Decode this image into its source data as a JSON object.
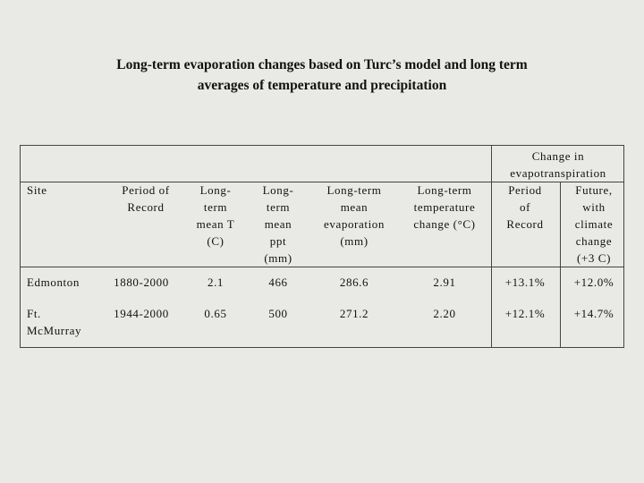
{
  "title": [
    "Long-term evaporation changes based on Turc’s model and long term",
    "averages of temperature and precipitation"
  ],
  "table": {
    "group_header": [
      "Change in",
      "evapotranspiration"
    ],
    "columns": [
      [
        "Site"
      ],
      [
        "Period of",
        "Record"
      ],
      [
        "Long-",
        "term",
        "mean T",
        "(C)"
      ],
      [
        "Long-",
        "term",
        "mean",
        "ppt",
        "(mm)"
      ],
      [
        "Long-term",
        "mean",
        "evaporation",
        "(mm)"
      ],
      [
        "Long-term",
        "temperature",
        "change (°C)"
      ],
      [
        "Period",
        "of",
        "Record"
      ],
      [
        "Future,",
        "with",
        "climate",
        "change",
        "(+3 C)"
      ]
    ],
    "rows": [
      [
        "Edmonton",
        "1880-2000",
        "2.1",
        "466",
        "286.6",
        "2.91",
        "+13.1%",
        "+12.0%"
      ],
      [
        "Ft. McMurray",
        "1944-2000",
        "0.65",
        "500",
        "271.2",
        "2.20",
        "+12.1%",
        "+14.7%"
      ]
    ]
  }
}
